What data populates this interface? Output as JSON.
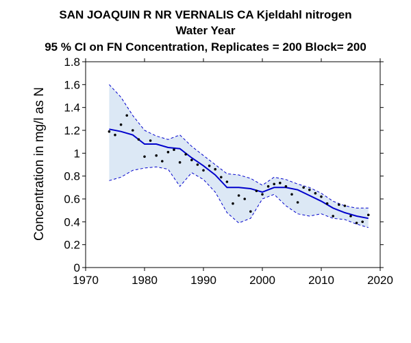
{
  "titles": {
    "line1": "SAN JOAQUIN R NR VERNALIS CA   Kjeldahl nitrogen",
    "line2": "Water Year",
    "line3": "95 % CI on FN Concentration, Replicates = 200 Block= 200"
  },
  "chart_data": {
    "type": "line",
    "ylabel": "Concentration in mg/l as N",
    "xlabel": "",
    "xlim": [
      1970,
      2020
    ],
    "ylim": [
      0,
      1.8
    ],
    "x_ticks": [
      1970,
      1980,
      1990,
      2000,
      2010,
      2020
    ],
    "y_ticks": [
      0,
      0.2,
      0.4,
      0.6,
      0.8,
      1,
      1.2,
      1.4,
      1.6,
      1.8
    ],
    "y_tick_labels": [
      "0",
      "0.2",
      "0.4",
      "0.6",
      "0.8",
      "1",
      "1.2",
      "1.4",
      "1.6",
      "1.8"
    ],
    "colors": {
      "trend": "#0000cc",
      "band_fill": "#dce8f5",
      "band_edge": "#0000cc",
      "points": "#000000"
    },
    "grid": false,
    "series": [
      {
        "kind": "trend",
        "x": [
          1974,
          1976,
          1978,
          1980,
          1982,
          1984,
          1986,
          1988,
          1990,
          1992,
          1994,
          1996,
          1998,
          2000,
          2002,
          2004,
          2006,
          2008,
          2010,
          2012,
          2014,
          2016,
          2018
        ],
        "y": [
          1.21,
          1.19,
          1.16,
          1.08,
          1.08,
          1.05,
          1.04,
          0.96,
          0.89,
          0.81,
          0.7,
          0.7,
          0.69,
          0.66,
          0.7,
          0.7,
          0.68,
          0.63,
          0.58,
          0.52,
          0.48,
          0.45,
          0.43
        ]
      },
      {
        "kind": "ci_upper",
        "x": [
          1974,
          1976,
          1978,
          1980,
          1982,
          1984,
          1986,
          1988,
          1990,
          1992,
          1994,
          1996,
          1998,
          2000,
          2002,
          2004,
          2006,
          2008,
          2010,
          2012,
          2014,
          2016,
          2018
        ],
        "y": [
          1.6,
          1.49,
          1.33,
          1.2,
          1.15,
          1.12,
          1.16,
          1.06,
          0.98,
          0.9,
          0.82,
          0.81,
          0.78,
          0.72,
          0.79,
          0.77,
          0.73,
          0.7,
          0.65,
          0.58,
          0.54,
          0.52,
          0.52
        ]
      },
      {
        "kind": "ci_lower",
        "x": [
          1974,
          1976,
          1978,
          1980,
          1982,
          1984,
          1986,
          1988,
          1990,
          1992,
          1994,
          1996,
          1998,
          2000,
          2002,
          2004,
          2006,
          2008,
          2010,
          2012,
          2014,
          2016,
          2018
        ],
        "y": [
          0.76,
          0.79,
          0.85,
          0.87,
          0.88,
          0.86,
          0.71,
          0.83,
          0.77,
          0.66,
          0.48,
          0.39,
          0.43,
          0.6,
          0.64,
          0.54,
          0.47,
          0.45,
          0.47,
          0.43,
          0.42,
          0.38,
          0.35
        ]
      },
      {
        "kind": "observations",
        "x": [
          1974,
          1975,
          1976,
          1977,
          1978,
          1979,
          1980,
          1981,
          1982,
          1983,
          1984,
          1985,
          1986,
          1987,
          1988,
          1989,
          1990,
          1991,
          1992,
          1993,
          1994,
          1995,
          1996,
          1997,
          1998,
          1999,
          2000,
          2001,
          2002,
          2003,
          2004,
          2005,
          2006,
          2007,
          2008,
          2009,
          2010,
          2011,
          2012,
          2013,
          2014,
          2015,
          2016,
          2017,
          2018
        ],
        "y": [
          1.19,
          1.16,
          1.25,
          1.33,
          1.2,
          1.12,
          0.97,
          1.11,
          0.98,
          0.93,
          1.01,
          1.03,
          0.92,
          0.99,
          0.94,
          0.9,
          0.85,
          0.89,
          0.86,
          0.79,
          0.75,
          0.56,
          0.63,
          0.6,
          0.49,
          0.67,
          0.64,
          0.71,
          0.73,
          0.74,
          0.71,
          0.64,
          0.57,
          0.7,
          0.68,
          0.65,
          0.62,
          0.56,
          0.45,
          0.55,
          0.54,
          0.45,
          0.39,
          0.4,
          0.46
        ]
      }
    ]
  }
}
